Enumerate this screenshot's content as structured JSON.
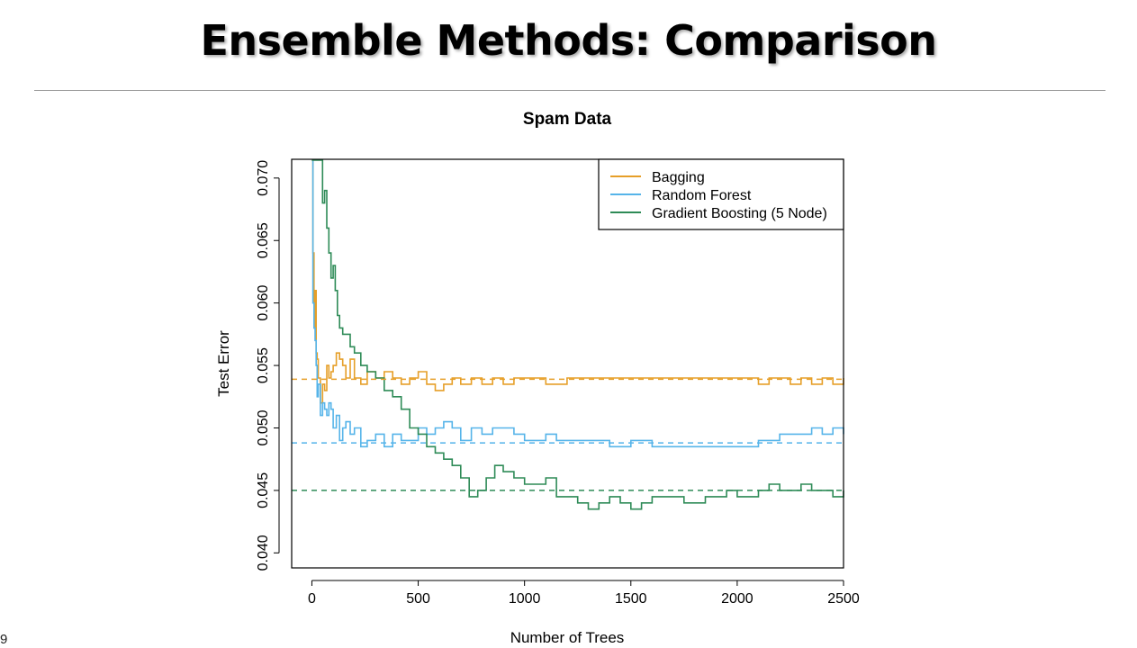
{
  "slide": {
    "title": "Ensemble Methods: Comparison",
    "page_number": "9"
  },
  "chart_data": {
    "type": "line",
    "title": "Spam Data",
    "xlabel": "Number of Trees",
    "ylabel": "Test Error",
    "xlim": [
      -95,
      2500
    ],
    "ylim": [
      0.0388,
      0.0715
    ],
    "xticks": [
      0,
      500,
      1000,
      1500,
      2000,
      2500
    ],
    "xtick_labels": [
      "0",
      "500",
      "1000",
      "1500",
      "2000",
      "2500"
    ],
    "yticks": [
      0.04,
      0.045,
      0.05,
      0.055,
      0.06,
      0.065,
      0.07
    ],
    "ytick_labels": [
      "0.040",
      "0.045",
      "0.050",
      "0.055",
      "0.060",
      "0.065",
      "0.070"
    ],
    "legend_position": "top-right",
    "grid": false,
    "series": [
      {
        "name": "Bagging",
        "color": "#E69F28",
        "baseline": 0.0539,
        "x": [
          0,
          5,
          10,
          15,
          20,
          25,
          30,
          40,
          50,
          60,
          70,
          80,
          90,
          100,
          115,
          130,
          145,
          160,
          180,
          200,
          230,
          260,
          300,
          340,
          380,
          420,
          460,
          500,
          540,
          580,
          620,
          660,
          700,
          750,
          800,
          850,
          900,
          950,
          1000,
          1100,
          1200,
          1300,
          1400,
          1500,
          1600,
          1700,
          1800,
          1900,
          2000,
          2100,
          2150,
          2200,
          2250,
          2300,
          2350,
          2400,
          2450,
          2500
        ],
        "values": [
          0.0715,
          0.064,
          0.058,
          0.061,
          0.056,
          0.0555,
          0.054,
          0.052,
          0.0535,
          0.053,
          0.055,
          0.054,
          0.0545,
          0.055,
          0.056,
          0.0555,
          0.055,
          0.054,
          0.0555,
          0.054,
          0.0535,
          0.0545,
          0.054,
          0.0545,
          0.054,
          0.0535,
          0.054,
          0.0545,
          0.0535,
          0.053,
          0.0535,
          0.054,
          0.0535,
          0.054,
          0.0535,
          0.054,
          0.0535,
          0.054,
          0.054,
          0.0535,
          0.054,
          0.054,
          0.054,
          0.054,
          0.054,
          0.054,
          0.054,
          0.054,
          0.054,
          0.0535,
          0.054,
          0.054,
          0.0535,
          0.054,
          0.0535,
          0.054,
          0.0535,
          0.054
        ]
      },
      {
        "name": "Random Forest",
        "color": "#56B4E9",
        "baseline": 0.0488,
        "x": [
          0,
          5,
          10,
          15,
          20,
          25,
          30,
          40,
          50,
          60,
          70,
          80,
          90,
          100,
          115,
          130,
          145,
          160,
          180,
          200,
          230,
          260,
          300,
          340,
          380,
          420,
          460,
          500,
          540,
          580,
          620,
          660,
          700,
          750,
          800,
          850,
          900,
          950,
          1000,
          1050,
          1100,
          1150,
          1200,
          1300,
          1400,
          1500,
          1600,
          1700,
          1800,
          1900,
          2000,
          2100,
          2150,
          2200,
          2250,
          2300,
          2350,
          2400,
          2450,
          2500
        ],
        "values": [
          0.0715,
          0.06,
          0.058,
          0.057,
          0.055,
          0.0525,
          0.0535,
          0.051,
          0.052,
          0.0515,
          0.051,
          0.052,
          0.0515,
          0.05,
          0.051,
          0.049,
          0.05,
          0.0505,
          0.0495,
          0.05,
          0.0485,
          0.049,
          0.0495,
          0.0485,
          0.0495,
          0.049,
          0.049,
          0.05,
          0.0495,
          0.05,
          0.0505,
          0.05,
          0.049,
          0.05,
          0.0495,
          0.05,
          0.05,
          0.0495,
          0.049,
          0.049,
          0.0495,
          0.049,
          0.049,
          0.049,
          0.0485,
          0.049,
          0.0485,
          0.0485,
          0.0485,
          0.0485,
          0.0485,
          0.049,
          0.049,
          0.0495,
          0.0495,
          0.0495,
          0.05,
          0.0495,
          0.05,
          0.0495
        ]
      },
      {
        "name": "Gradient Boosting (5 Node)",
        "color": "#2E8B57",
        "baseline": 0.045,
        "x": [
          0,
          10,
          20,
          30,
          40,
          50,
          60,
          70,
          80,
          90,
          100,
          110,
          120,
          130,
          145,
          160,
          180,
          200,
          230,
          260,
          300,
          340,
          380,
          420,
          460,
          500,
          540,
          580,
          620,
          660,
          700,
          740,
          780,
          820,
          860,
          900,
          950,
          1000,
          1050,
          1100,
          1150,
          1200,
          1250,
          1300,
          1350,
          1400,
          1450,
          1500,
          1550,
          1600,
          1650,
          1700,
          1750,
          1800,
          1850,
          1900,
          1950,
          2000,
          2050,
          2100,
          2150,
          2200,
          2250,
          2300,
          2350,
          2400,
          2450,
          2500
        ],
        "values": [
          0.0715,
          0.0715,
          0.0715,
          0.0715,
          0.0715,
          0.068,
          0.069,
          0.066,
          0.064,
          0.062,
          0.063,
          0.061,
          0.059,
          0.058,
          0.0575,
          0.0575,
          0.0565,
          0.056,
          0.055,
          0.0545,
          0.054,
          0.053,
          0.0525,
          0.0515,
          0.05,
          0.0495,
          0.0485,
          0.048,
          0.0475,
          0.047,
          0.046,
          0.0445,
          0.045,
          0.046,
          0.047,
          0.0465,
          0.046,
          0.0455,
          0.0455,
          0.046,
          0.0445,
          0.0445,
          0.044,
          0.0435,
          0.044,
          0.0445,
          0.044,
          0.0435,
          0.044,
          0.0445,
          0.0445,
          0.0445,
          0.044,
          0.044,
          0.0445,
          0.0445,
          0.045,
          0.0445,
          0.0445,
          0.045,
          0.0455,
          0.045,
          0.045,
          0.0455,
          0.045,
          0.045,
          0.0445,
          0.045
        ]
      }
    ]
  }
}
